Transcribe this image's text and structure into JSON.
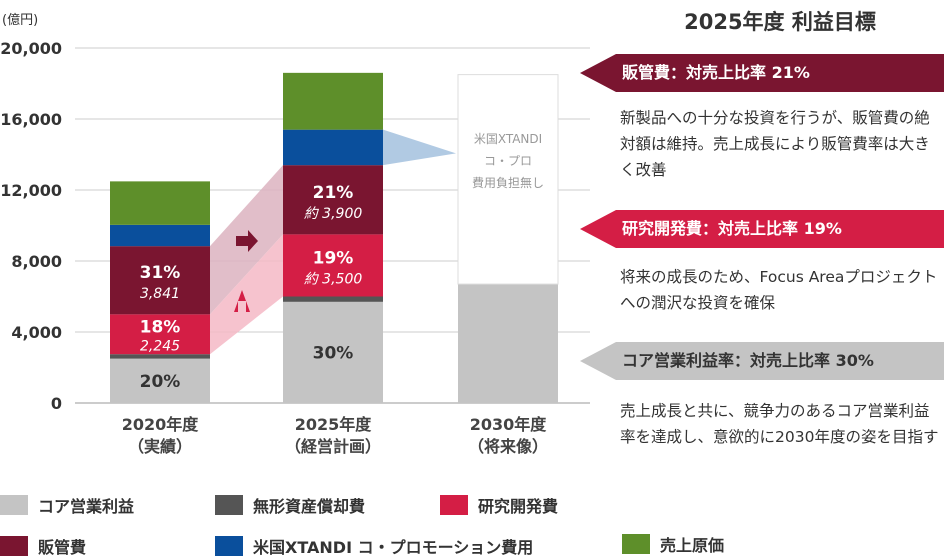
{
  "chart_data": {
    "type": "bar",
    "stacked": true,
    "unit": "(億円)",
    "ylim": [
      0,
      20000
    ],
    "yticks": [
      0,
      4000,
      8000,
      12000,
      16000,
      20000
    ],
    "ytick_labels": [
      "0",
      "4,000",
      "8,000",
      "12,000",
      "16,000",
      "20,000"
    ],
    "categories": [
      "2020年度\n（実績）",
      "2025年度\n（経営計画）",
      "2030年度\n（将来像）"
    ],
    "series": [
      {
        "name": "コア営業利益",
        "color": "#c4c4c4",
        "values": [
          2500,
          5700,
          6700
        ]
      },
      {
        "name": "無形資産償却費",
        "color": "#555555",
        "values": [
          250,
          300,
          0
        ]
      },
      {
        "name": "研究開発費",
        "color": "#d41e45",
        "values": [
          2245,
          3500,
          0
        ]
      },
      {
        "name": "販管費",
        "color": "#7a1530",
        "values": [
          3841,
          3900,
          0
        ]
      },
      {
        "name": "米国XTANDI コ・プロモーション費用",
        "color": "#0a4f9c",
        "values": [
          1200,
          2000,
          0
        ]
      },
      {
        "name": "売上原価",
        "color": "#5e8f2a",
        "values": [
          2450,
          3200,
          0
        ]
      },
      {
        "name": "",
        "color": "#ffffff",
        "values": [
          0,
          0,
          11800
        ]
      }
    ],
    "annotations": {
      "bar0_core_pct": "20%",
      "bar0_rd_pct": "18%",
      "bar0_rd_value": "2,245",
      "bar0_sga_pct": "31%",
      "bar0_sga_value": "3,841",
      "bar1_core_pct": "30%",
      "bar1_rd_pct": "19%",
      "bar1_rd_value": "約 3,500",
      "bar1_sga_pct": "21%",
      "bar1_sga_value": "約 3,900",
      "bar2_note_lines": [
        "米国XTANDI",
        "コ・プロ",
        "費用負担無し"
      ]
    },
    "legend_position": "bottom"
  },
  "panel": {
    "title": "2025年度 利益目標",
    "items": [
      {
        "banner": "販管費：対売上比率 21%",
        "desc": "新製品への十分な投資を行うが、販管費の絶対額は維持。売上成長により販管費率は大きく改善"
      },
      {
        "banner": "研究開発費：対売上比率 19%",
        "desc": "将来の成長のため、Focus Areaプロジェクトへの潤沢な投資を確保"
      },
      {
        "banner": "コア営業利益率：対売上比率 30%",
        "desc": "売上成長と共に、競争力のあるコア営業利益率を達成し、意欲的に2030年度の姿を目指す"
      }
    ]
  },
  "colors": {
    "core": "#c4c4c4",
    "amort": "#555555",
    "rd": "#d41e45",
    "sga": "#7a1530",
    "copro": "#0a4f9c",
    "cogs": "#5e8f2a",
    "copro_band": "#a8c4e0",
    "rd_band": "#f5b8c6",
    "sga_band": "#dcb3bf"
  }
}
